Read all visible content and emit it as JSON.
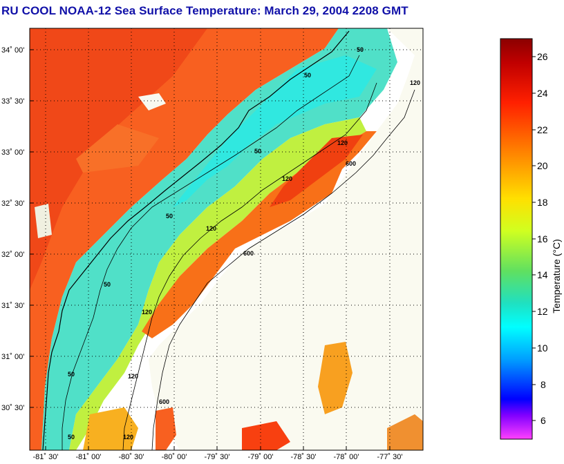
{
  "title": "RU COOL  NOAA-12  Sea Surface Temperature:  March 29, 2004 2208 GMT",
  "map": {
    "lat_labels": [
      "34˚ 00'",
      "33˚ 30'",
      "33˚ 00'",
      "32˚ 30'",
      "32˚ 00'",
      "31˚ 30'",
      "31˚ 00'",
      "30˚ 30'"
    ],
    "lon_labels": [
      "-81˚ 30'",
      "-81˚ 00'",
      "-80˚ 30'",
      "-80˚ 00'",
      "-79˚ 30'",
      "-79˚ 00'",
      "-78˚ 30'",
      "-78˚ 00'",
      "-77˚ 30'"
    ],
    "contour_labels": [
      "50",
      "50",
      "120",
      "50",
      "120",
      "600",
      "120",
      "50",
      "120",
      "600",
      "50",
      "120",
      "50",
      "120",
      "600",
      "50",
      "120"
    ]
  },
  "colorbar": {
    "label": "Temperature (°C)",
    "ticks": [
      "26",
      "24",
      "22",
      "20",
      "18",
      "16",
      "14",
      "12",
      "10",
      "8",
      "6"
    ],
    "colors": {
      "high": "#8b0000",
      "red": "#ff2000",
      "orange": "#ff8000",
      "yellow": "#ffff00",
      "green": "#60e060",
      "cyan": "#00ffff",
      "blue": "#0000ff",
      "magenta": "#ff00ff"
    }
  }
}
